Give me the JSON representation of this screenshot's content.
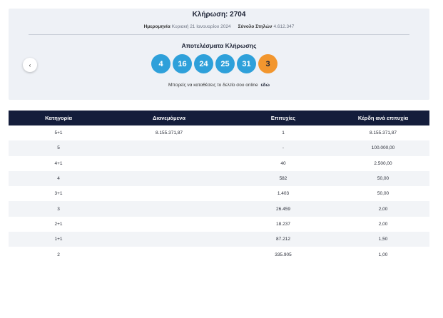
{
  "draw": {
    "title": "Κλήρωση: 2704",
    "date_label": "Ημερομηνία",
    "date_value": "Κυριακή 21 Ιανουαρίου 2024",
    "columns_label": "Σύνολο Στηλών",
    "columns_value": "4.612.347",
    "results_title": "Αποτελέσματα Κλήρωσης",
    "numbers": [
      "4",
      "16",
      "24",
      "25",
      "31"
    ],
    "joker": "3",
    "online_text": "Μπορείς να καταθέσεις το δελτίο σου online",
    "online_link": "εδώ",
    "prev_icon": "‹"
  },
  "table": {
    "headers": [
      "Κατηγορία",
      "Διανεμόμενα",
      "Επιτυχίες",
      "Κέρδη ανά επιτυχία"
    ],
    "rows": [
      [
        "5+1",
        "8.155.371,87",
        "1",
        "8.155.371,87"
      ],
      [
        "5",
        "",
        "-",
        "100.000,00"
      ],
      [
        "4+1",
        "",
        "40",
        "2.500,00"
      ],
      [
        "4",
        "",
        "582",
        "50,00"
      ],
      [
        "3+1",
        "",
        "1.403",
        "50,00"
      ],
      [
        "3",
        "",
        "26.459",
        "2,00"
      ],
      [
        "2+1",
        "",
        "18.237",
        "2,00"
      ],
      [
        "1+1",
        "",
        "87.212",
        "1,50"
      ],
      [
        "2",
        "",
        "335.905",
        "1,00"
      ]
    ]
  },
  "colors": {
    "ball": "#2ea0da",
    "joker": "#f2962e",
    "table_header": "#141d3b",
    "panel": "#eef1f6"
  }
}
